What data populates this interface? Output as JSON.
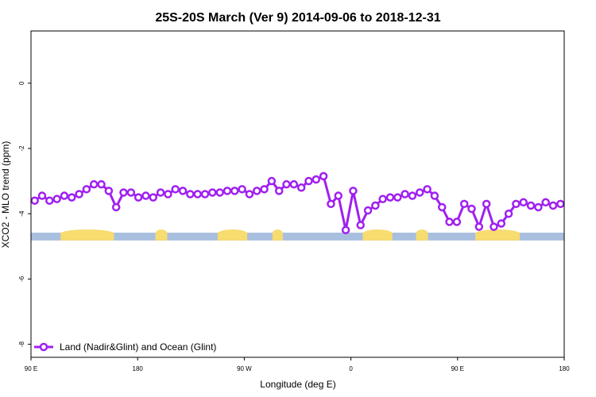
{
  "chart_data": {
    "type": "line",
    "title": "25S-20S March (Ver 9)   2014-09-06 to 2018-12-31",
    "xlabel": "Longitude (deg E)",
    "ylabel": "XCO2 - MLO trend (ppm)",
    "xlim": [
      -180,
      180
    ],
    "ylim": [
      -8.4,
      1.6
    ],
    "x_ticks": [
      {
        "value": -180,
        "label": "90 E"
      },
      {
        "value": -108,
        "label": "180"
      },
      {
        "value": -36,
        "label": "90 W"
      },
      {
        "value": 36,
        "label": "0"
      },
      {
        "value": 108,
        "label": "90 E"
      },
      {
        "value": 180,
        "label": "180"
      }
    ],
    "y_ticks": [
      0,
      -2,
      -4,
      -6,
      -8
    ],
    "grid": false,
    "legend_position": "bottom-left",
    "series": [
      {
        "name": "Land (Nadir&Glint) and Ocean (Glint)",
        "color": "#a020f0",
        "x": [
          -177.5,
          -172.5,
          -167.5,
          -162.5,
          -157.5,
          -152.5,
          -147.5,
          -142.5,
          -137.5,
          -132.5,
          -127.5,
          -122.5,
          -117.5,
          -112.5,
          -107.5,
          -102.5,
          -97.5,
          -92.5,
          -87.5,
          -82.5,
          -77.5,
          -72.5,
          -67.5,
          -62.5,
          -57.5,
          -52.5,
          -47.5,
          -42.5,
          -37.5,
          -32.5,
          -27.5,
          -22.5,
          -17.5,
          -12.5,
          -7.5,
          -2.5,
          2.5,
          7.5,
          12.5,
          17.5,
          22.5,
          27.5,
          32.5,
          37.5,
          42.5,
          47.5,
          52.5,
          57.5,
          62.5,
          67.5,
          72.5,
          77.5,
          82.5,
          87.5,
          92.5,
          97.5,
          102.5,
          107.5,
          112.5,
          117.5,
          122.5,
          127.5,
          132.5,
          137.5,
          142.5,
          147.5,
          152.5,
          157.5,
          162.5,
          167.5,
          172.5,
          177.5
        ],
        "y": [
          -3.6,
          -3.45,
          -3.6,
          -3.55,
          -3.45,
          -3.5,
          -3.4,
          -3.25,
          -3.1,
          -3.1,
          -3.3,
          -3.8,
          -3.35,
          -3.35,
          -3.5,
          -3.45,
          -3.5,
          -3.35,
          -3.4,
          -3.25,
          -3.3,
          -3.4,
          -3.4,
          -3.4,
          -3.35,
          -3.35,
          -3.3,
          -3.3,
          -3.25,
          -3.4,
          -3.3,
          -3.25,
          -3.0,
          -3.3,
          -3.1,
          -3.1,
          -3.2,
          -3.0,
          -2.95,
          -2.85,
          -3.7,
          -3.45,
          -4.5,
          -3.3,
          -4.35,
          -3.9,
          -3.75,
          -3.55,
          -3.5,
          -3.5,
          -3.4,
          -3.45,
          -3.35,
          -3.25,
          -3.45,
          -3.8,
          -4.25,
          -4.25,
          -3.7,
          -3.85,
          -4.4,
          -3.7,
          -4.4,
          -4.3,
          -4.0,
          -3.7,
          -3.65,
          -3.75,
          -3.8,
          -3.65,
          -3.75,
          -3.7
        ]
      }
    ],
    "surface_bar": {
      "y_value": -4.7,
      "ocean_color": "#a9bfe0",
      "land_color": "#f7dc6f",
      "land_ranges": [
        [
          -160,
          -124
        ],
        [
          -96,
          -88
        ],
        [
          -54,
          -34
        ],
        [
          -17,
          -10
        ],
        [
          44,
          64
        ],
        [
          80,
          88
        ],
        [
          120,
          150
        ]
      ]
    }
  }
}
